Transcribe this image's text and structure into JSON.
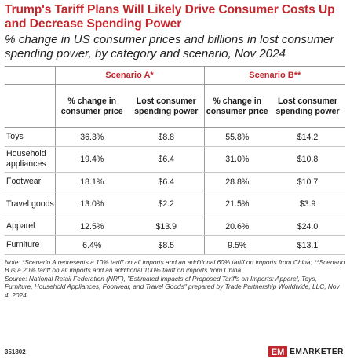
{
  "title": "Trump's Tariff Plans Will Likely Drive Consumer Costs Up and Decrease Spending Power",
  "subtitle": "% change in US consumer prices and billions in lost consumer spending power, by category and scenario, Nov 2024",
  "scenarios": [
    "Scenario A*",
    "Scenario B**"
  ],
  "columns": [
    "% change in consumer price",
    "Lost consumer spending power"
  ],
  "colors": {
    "title": "#c2272d",
    "scenario": "#c2272d",
    "brand": "#c2272d"
  },
  "chart_data": {
    "type": "table",
    "title": "Trump's Tariff Plans Will Likely Drive Consumer Costs Up and Decrease Spending Power",
    "column_groups": [
      "Scenario A*",
      "Scenario B**"
    ],
    "columns": [
      "% change in consumer price",
      "Lost consumer spending power"
    ],
    "rows": [
      {
        "category": "Toys",
        "a_price": "36.3%",
        "a_power": "$8.8",
        "b_price": "55.8%",
        "b_power": "$14.2"
      },
      {
        "category": "Household appliances",
        "a_price": "19.4%",
        "a_power": "$6.4",
        "b_price": "31.0%",
        "b_power": "$10.8"
      },
      {
        "category": "Footwear",
        "a_price": "18.1%",
        "a_power": "$6.4",
        "b_price": "28.8%",
        "b_power": "$10.7"
      },
      {
        "category": "Travel goods",
        "a_price": "13.0%",
        "a_power": "$2.2",
        "b_price": "21.5%",
        "b_power": "$3.9"
      },
      {
        "category": "Apparel",
        "a_price": "12.5%",
        "a_power": "$13.9",
        "b_price": "20.6%",
        "b_power": "$24.0"
      },
      {
        "category": "Furniture",
        "a_price": "6.4%",
        "a_power": "$8.5",
        "b_price": "9.5%",
        "b_power": "$13.1"
      }
    ]
  },
  "note": "Note: *Scenario A represents a 10% tariff on all imports and an additional 60% tariff on imports from China; **Scenario B is a 20% tariff on all imports and an additional 100% tariff on imports from China",
  "source": "Source: National Retail Federation (NRF), \"Estimated Impacts of Proposed Tariffs on Imports: Apparel, Toys, Furniture, Household Appliances, Footwear, and Travel Goods\" prepared by Trade Partnership Worldwide, LLC, Nov 4, 2024",
  "footer": {
    "id": "351802",
    "brand": "EMARKETER",
    "logo_icon": "em-logo-icon"
  }
}
